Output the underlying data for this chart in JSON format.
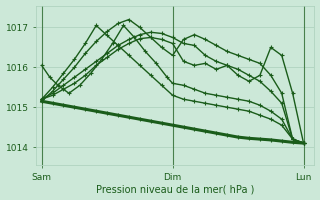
{
  "bg_color": "#cce8d8",
  "grid_color": "#aacfba",
  "line_color": "#1a5c1a",
  "xlabel": "Pression niveau de la mer( hPa )",
  "yticks": [
    1014,
    1015,
    1016,
    1017
  ],
  "xtick_labels": [
    "Sam",
    "Dim",
    "Lun"
  ],
  "xtick_positions": [
    0,
    48,
    96
  ],
  "xlim": [
    -2,
    100
  ],
  "ylim": [
    1013.55,
    1017.55
  ],
  "series": [
    {
      "x": [
        0,
        4,
        8,
        12,
        16,
        20,
        24,
        28,
        32,
        36,
        40,
        44,
        48,
        52,
        56,
        60,
        64,
        68,
        72,
        76,
        80,
        84,
        88,
        92,
        96
      ],
      "y": [
        1015.15,
        1015.1,
        1015.05,
        1015.0,
        1014.95,
        1014.9,
        1014.85,
        1014.8,
        1014.75,
        1014.7,
        1014.65,
        1014.6,
        1014.55,
        1014.5,
        1014.45,
        1014.4,
        1014.35,
        1014.3,
        1014.25,
        1014.22,
        1014.2,
        1014.18,
        1014.15,
        1014.12,
        1014.1
      ],
      "lw": 2.2,
      "marker": "+"
    },
    {
      "x": [
        0,
        3,
        6,
        10,
        14,
        18,
        22,
        26,
        30,
        34,
        38,
        42,
        46,
        48,
        52,
        56,
        60,
        64,
        68,
        72,
        76,
        80,
        84,
        88,
        92,
        96
      ],
      "y": [
        1016.05,
        1015.75,
        1015.55,
        1015.35,
        1015.55,
        1015.85,
        1016.2,
        1016.6,
        1017.05,
        1016.75,
        1016.4,
        1016.1,
        1015.75,
        1015.6,
        1015.55,
        1015.45,
        1015.35,
        1015.3,
        1015.25,
        1015.2,
        1015.15,
        1015.05,
        1014.9,
        1014.7,
        1014.2,
        1014.1
      ],
      "lw": 1.0,
      "marker": "+"
    },
    {
      "x": [
        0,
        4,
        8,
        12,
        16,
        20,
        24,
        28,
        32,
        36,
        40,
        44,
        48,
        52,
        56,
        60,
        64,
        68,
        72,
        76,
        80,
        84,
        88,
        92,
        96
      ],
      "y": [
        1015.2,
        1015.5,
        1015.85,
        1016.2,
        1016.6,
        1017.05,
        1016.8,
        1016.55,
        1016.3,
        1016.05,
        1015.8,
        1015.55,
        1015.3,
        1015.2,
        1015.15,
        1015.1,
        1015.05,
        1015.0,
        1014.95,
        1014.9,
        1014.8,
        1014.7,
        1014.55,
        1014.2,
        1014.1
      ],
      "lw": 1.0,
      "marker": "+"
    },
    {
      "x": [
        0,
        4,
        8,
        12,
        16,
        20,
        24,
        28,
        32,
        36,
        40,
        44,
        48,
        52,
        56,
        60,
        64,
        68,
        72,
        76,
        80,
        84,
        88,
        92,
        96
      ],
      "y": [
        1015.15,
        1015.4,
        1015.7,
        1016.0,
        1016.35,
        1016.65,
        1016.9,
        1017.1,
        1017.2,
        1017.0,
        1016.75,
        1016.5,
        1016.3,
        1016.7,
        1016.82,
        1016.7,
        1016.55,
        1016.4,
        1016.3,
        1016.2,
        1016.1,
        1015.8,
        1015.35,
        1014.2,
        1014.1
      ],
      "lw": 1.0,
      "marker": "+"
    },
    {
      "x": [
        0,
        4,
        8,
        12,
        16,
        20,
        24,
        28,
        32,
        36,
        40,
        44,
        48,
        52,
        56,
        60,
        64,
        68,
        72,
        76,
        80,
        84,
        88,
        92,
        96
      ],
      "y": [
        1015.2,
        1015.35,
        1015.55,
        1015.75,
        1015.95,
        1016.15,
        1016.35,
        1016.55,
        1016.7,
        1016.82,
        1016.88,
        1016.85,
        1016.75,
        1016.6,
        1016.55,
        1016.3,
        1016.15,
        1016.05,
        1015.95,
        1015.8,
        1015.65,
        1015.4,
        1015.1,
        1014.2,
        1014.1
      ],
      "lw": 1.0,
      "marker": "+"
    },
    {
      "x": [
        0,
        4,
        8,
        12,
        16,
        20,
        24,
        28,
        32,
        36,
        40,
        44,
        48,
        52,
        56,
        60,
        64,
        68,
        72,
        76,
        80,
        84,
        88,
        92,
        96
      ],
      "y": [
        1015.2,
        1015.3,
        1015.45,
        1015.6,
        1015.8,
        1016.05,
        1016.25,
        1016.45,
        1016.6,
        1016.72,
        1016.75,
        1016.7,
        1016.6,
        1016.15,
        1016.05,
        1016.1,
        1015.95,
        1016.05,
        1015.8,
        1015.65,
        1015.8,
        1016.5,
        1016.3,
        1015.35,
        1014.1
      ],
      "lw": 1.0,
      "marker": "+"
    }
  ],
  "vlines": [
    0,
    48,
    96
  ],
  "figsize": [
    3.2,
    2.0
  ],
  "dpi": 100
}
